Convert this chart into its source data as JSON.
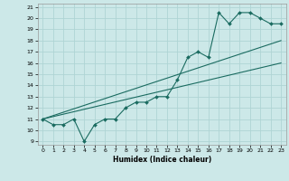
{
  "title": "",
  "xlabel": "Humidex (Indice chaleur)",
  "bg_color": "#cce8e8",
  "grid_color": "#afd4d4",
  "line_color": "#1a6b60",
  "xlim": [
    -0.5,
    23.5
  ],
  "ylim": [
    8.7,
    21.3
  ],
  "xticks": [
    0,
    1,
    2,
    3,
    4,
    5,
    6,
    7,
    8,
    9,
    10,
    11,
    12,
    13,
    14,
    15,
    16,
    17,
    18,
    19,
    20,
    21,
    22,
    23
  ],
  "yticks": [
    9,
    10,
    11,
    12,
    13,
    14,
    15,
    16,
    17,
    18,
    19,
    20,
    21
  ],
  "line1_x": [
    0,
    1,
    2,
    3,
    4,
    5,
    6,
    7,
    8,
    9,
    10,
    11,
    12,
    13,
    14,
    15,
    16,
    17,
    18,
    19,
    20,
    21,
    22,
    23
  ],
  "line1_y": [
    11,
    10.5,
    10.5,
    11,
    9,
    10.5,
    11,
    11,
    12,
    12.5,
    12.5,
    13,
    13,
    14.5,
    16.5,
    17,
    16.5,
    20.5,
    19.5,
    20.5,
    20.5,
    20,
    19.5,
    19.5
  ],
  "line2_x": [
    0,
    23
  ],
  "line2_y": [
    11,
    16
  ],
  "line3_x": [
    0,
    23
  ],
  "line3_y": [
    11,
    18
  ],
  "xlabel_fontsize": 5.5,
  "tick_fontsize": 4.5
}
